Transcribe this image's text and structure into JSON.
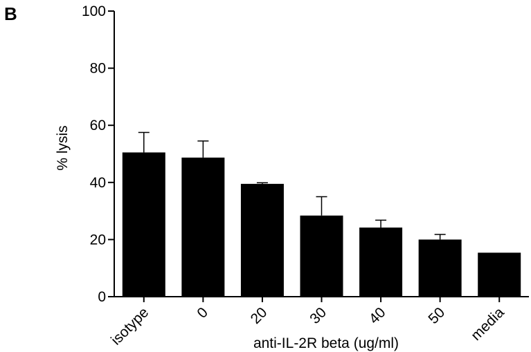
{
  "panel_label": "B",
  "chart_data": {
    "type": "bar",
    "title": "",
    "xlabel": "anti-IL-2R beta (ug/ml)",
    "ylabel": "% lysis",
    "ylim": [
      0,
      100
    ],
    "yticks": [
      0,
      20,
      40,
      60,
      80,
      100
    ],
    "categories": [
      "isotype",
      "0",
      "20",
      "30",
      "40",
      "50",
      "media"
    ],
    "values": [
      50.5,
      48.7,
      39.5,
      28.4,
      24.2,
      20.0,
      15.4
    ],
    "error_upper": [
      7.0,
      5.8,
      0.4,
      6.6,
      2.6,
      1.8,
      0
    ],
    "bar_color": "#000000",
    "grid": false,
    "legend": "none"
  }
}
